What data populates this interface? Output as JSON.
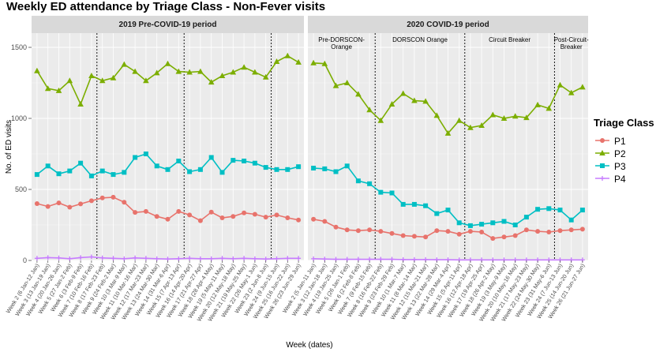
{
  "chart_data": {
    "type": "line",
    "title": "Weekly ED attendance by Triage Class - Non-Fever visits",
    "xlabel": "Week (dates)",
    "ylabel": "No. of ED visits",
    "ylim": [
      0,
      1600
    ],
    "yticks": [
      0,
      500,
      1000,
      1500
    ],
    "grid": true,
    "legend": {
      "title": "Triage Class",
      "position": "right",
      "entries": [
        "P1",
        "P2",
        "P3",
        "P4"
      ]
    },
    "colors": {
      "P1": "#E8736C",
      "P2": "#7CAE00",
      "P3": "#00BFC4",
      "P4": "#C77CFF"
    },
    "panels": [
      {
        "title": "2019 Pre-COVID-19 period",
        "x": [
          "Week 2 (6 Jan-12 Jan)",
          "Week 3 (13 Jan-19 Jan)",
          "Week 4 (20 Jan-26 Jan)",
          "Week 5 (27 Jan-2 Feb)",
          "Week 6 (3 Feb-9 Feb)",
          "Week 7 (10 Feb-16 Feb)",
          "Week 8 (17 Feb-23 Feb)",
          "Week 9 (24 Feb-2 Mar)",
          "Week 10 (3 Mar-9 Mar)",
          "Week 11 (10 Mar-16 Mar)",
          "Week 12 (17 Mar-23 Mar)",
          "Week 13 (24 Mar-30 Mar)",
          "Week 14 (31 Mar-6 Apr)",
          "Week 15 (7 Apr-13 Apr)",
          "Week 16 (14 Apr-20 Apr)",
          "Week 17 (21 Apr-27 Apr)",
          "Week 18 (28 Apr-4 May)",
          "Week 19 (5 May-11 May)",
          "Week 20 (12 May-18 May)",
          "Week 21 (19 May-25 May)",
          "Week 22 (26 May-1 Jun)",
          "Week 23 (2 Jun-8 Jun)",
          "Week 24 (9 Jun-15 Jun)",
          "Week 25 (16 Jun-22 Jun)",
          "Week 26 (23 Jun-29 Jun)"
        ],
        "dashed_lines_after": [
          "Week 7 (10 Feb-16 Feb)",
          "Week 15 (7 Apr-13 Apr)",
          "Week 23 (2 Jun-8 Jun)"
        ],
        "series": [
          {
            "name": "P1",
            "values": [
              400,
              380,
              405,
              375,
              398,
              420,
              440,
              445,
              410,
              338,
              345,
              310,
              290,
              345,
              320,
              280,
              340,
              300,
              310,
              335,
              325,
              305,
              320,
              300,
              285
            ]
          },
          {
            "name": "P2",
            "values": [
              1335,
              1210,
              1195,
              1265,
              1100,
              1300,
              1265,
              1285,
              1380,
              1330,
              1265,
              1320,
              1385,
              1330,
              1325,
              1330,
              1255,
              1300,
              1325,
              1360,
              1325,
              1290,
              1400,
              1440,
              1395
            ]
          },
          {
            "name": "P3",
            "values": [
              605,
              665,
              610,
              630,
              685,
              595,
              630,
              605,
              620,
              725,
              750,
              665,
              640,
              700,
              625,
              640,
              725,
              620,
              705,
              700,
              685,
              655,
              640,
              640,
              660
            ]
          },
          {
            "name": "P4",
            "values": [
              15,
              20,
              18,
              12,
              20,
              25,
              18,
              15,
              12,
              18,
              15,
              12,
              10,
              12,
              15,
              12,
              12,
              15,
              12,
              15,
              12,
              10,
              12,
              15,
              15
            ]
          }
        ]
      },
      {
        "title": "2020 COVID-19 period",
        "x": [
          "Week 2 (5 Jan-11 Jan)",
          "Week 3 (12 Jan-18 Jan)",
          "Week 4 (19 Jan-25 Jan)",
          "Week 5 (26 Jan-1 Feb)",
          "Week 6 (2 Feb-8 Feb)",
          "Week 7 (9 Feb-15 Feb)",
          "Week 8 (16 Feb-22 Feb)",
          "Week 9 (23 Feb-29 Feb)",
          "Week 10 (1 Mar-7 Mar)",
          "Week 11 (8 Mar-14 Mar)",
          "Week 12 (15 Mar-21 Mar)",
          "Week 13 (22 Mar-28 Mar)",
          "Week 14 (29 Mar-4 Apr)",
          "Week 15 (5 Apr-11 Apr)",
          "Week 16 (12 Apr-18 Apr)",
          "Week 17 (19 Apr-25 Apr)",
          "Week 18 (26 Apr-2 May)",
          "Week 19 (3 May-9 May)",
          "Week 20 (10 May-16 May)",
          "Week 21 (17 May-23 May)",
          "Week 22 (24 May-30 May)",
          "Week 23 (31 May-6 Jun)",
          "Week 24 (7 Jun-13 Jun)",
          "Week 25 (14 Jun-20 Jun)",
          "Week 26 (21 Jun-27 Jun)"
        ],
        "dashed_lines_after": [
          "Week 7 (9 Feb-15 Feb)",
          "Week 15 (5 Apr-11 Apr)",
          "Week 23 (31 May-6 Jun)"
        ],
        "annotations": [
          "Pre-DORSCON-Orange",
          "DORSCON Orange",
          "Circuit Breaker",
          "Post-Circuit-Breaker"
        ],
        "series": [
          {
            "name": "P1",
            "values": [
              290,
              275,
              235,
              215,
              210,
              215,
              205,
              190,
              175,
              170,
              165,
              210,
              205,
              185,
              205,
              200,
              155,
              165,
              175,
              215,
              205,
              200,
              210,
              215,
              220
            ]
          },
          {
            "name": "P2",
            "values": [
              1390,
              1385,
              1230,
              1250,
              1170,
              1060,
              985,
              1100,
              1175,
              1125,
              1120,
              1020,
              895,
              985,
              935,
              950,
              1025,
              1000,
              1015,
              1005,
              1095,
              1070,
              1235,
              1180,
              1220
            ]
          },
          {
            "name": "P3",
            "values": [
              650,
              645,
              625,
              665,
              560,
              540,
              480,
              475,
              395,
              395,
              385,
              330,
              355,
              265,
              245,
              255,
              265,
              275,
              250,
              305,
              360,
              365,
              355,
              285,
              355
            ]
          },
          {
            "name": "P4",
            "values": [
              12,
              10,
              8,
              8,
              8,
              8,
              8,
              8,
              6,
              6,
              6,
              5,
              5,
              4,
              4,
              4,
              4,
              4,
              4,
              4,
              4,
              4,
              4,
              4,
              4
            ]
          }
        ]
      }
    ]
  }
}
